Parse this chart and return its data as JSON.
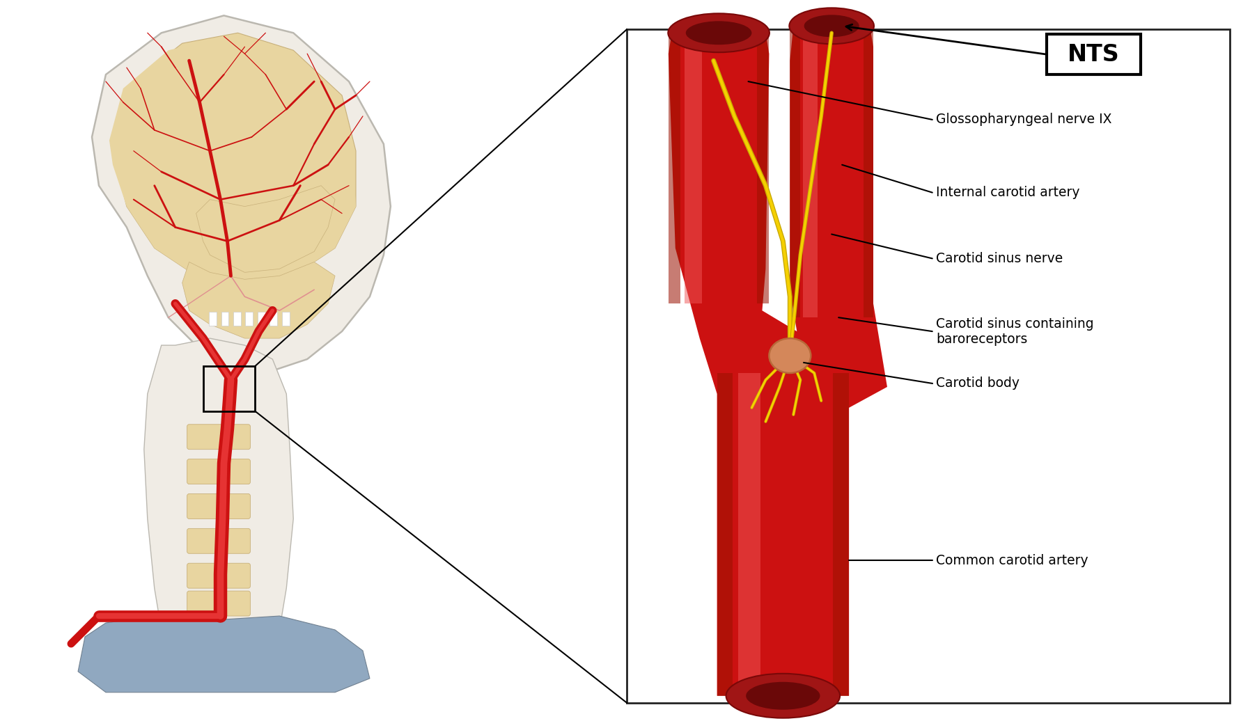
{
  "bg_color": "#ffffff",
  "red": "#cc1111",
  "red_dark": "#991100",
  "red_light": "#e63333",
  "red_highlight": "#ee5555",
  "red_lumen": "#8b1a1a",
  "nerve_yellow": "#f5d000",
  "nerve_dark": "#c8a800",
  "body_orange": "#d4875a",
  "body_orange_dark": "#b86a3a",
  "skin_fill": "#f5e8c8",
  "skin_edge": "#ccb89a",
  "bone_fill": "#e8d5a0",
  "bone_edge": "#c8b07a",
  "faint_vessel": "#e09090",
  "blue_gray": "#90a8c0",
  "box_edge": "#222222",
  "text_color": "#1a1a1a",
  "line_color": "#111111",
  "labels": {
    "NTS": "NTS",
    "glosso": "Glossopharyngeal nerve IX",
    "internal": "Internal carotid artery",
    "sinus_nerve": "Carotid sinus nerve",
    "sinus_containing": "Carotid sinus containing\nbaroreceptors",
    "body": "Carotid body",
    "common": "Common carotid artery"
  },
  "figsize": [
    17.72,
    10.46
  ],
  "dpi": 100
}
